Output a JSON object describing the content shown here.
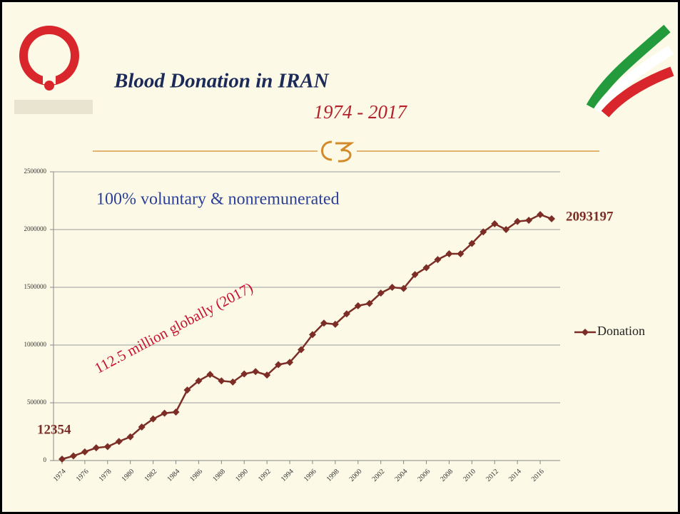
{
  "title": "Blood Donation in IRAN",
  "subtitle": "1974 - 2017",
  "chart_data": {
    "type": "line",
    "annotations": [
      "100% voluntary & nonremunerated",
      "112.5 million globally (2017)"
    ],
    "x": [
      1974,
      1975,
      1976,
      1977,
      1978,
      1979,
      1980,
      1981,
      1982,
      1983,
      1984,
      1985,
      1986,
      1987,
      1988,
      1989,
      1990,
      1991,
      1992,
      1993,
      1994,
      1995,
      1996,
      1997,
      1998,
      1999,
      2000,
      2001,
      2002,
      2003,
      2004,
      2005,
      2006,
      2007,
      2008,
      2009,
      2010,
      2011,
      2012,
      2013,
      2014,
      2015,
      2016,
      2017
    ],
    "series": [
      {
        "name": "Donation",
        "color": "#7b2d26",
        "values": [
          12354,
          40000,
          75000,
          110000,
          120000,
          165000,
          205000,
          290000,
          360000,
          410000,
          420000,
          610000,
          690000,
          745000,
          690000,
          680000,
          750000,
          770000,
          740000,
          830000,
          850000,
          960000,
          1090000,
          1190000,
          1180000,
          1270000,
          1340000,
          1360000,
          1450000,
          1500000,
          1490000,
          1610000,
          1670000,
          1740000,
          1790000,
          1790000,
          1880000,
          1980000,
          2050000,
          2000000,
          2070000,
          2080000,
          2130000,
          2093197
        ]
      }
    ],
    "xlim": [
      1973.25,
      2017.75
    ],
    "xticks": [
      1974,
      1976,
      1978,
      1980,
      1982,
      1984,
      1986,
      1988,
      1990,
      1992,
      1994,
      1996,
      1998,
      2000,
      2002,
      2004,
      2006,
      2008,
      2010,
      2012,
      2014,
      2016
    ],
    "ylim": [
      0,
      2500000
    ],
    "yticks": [
      0,
      500000,
      1000000,
      1500000,
      2000000,
      2500000
    ],
    "grid": true,
    "legend": "right"
  }
}
